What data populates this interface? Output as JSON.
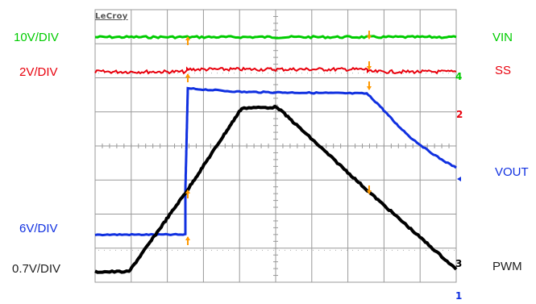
{
  "scope": {
    "brand": "LeCroy"
  },
  "labels": {
    "left": {
      "vin_scale": "10V/DIV",
      "ss_scale": "2V/DIV",
      "vout_scale": "6V/DIV",
      "pwm_scale": "0.7V/DIV"
    },
    "right": {
      "vin": "VIN",
      "ss": "SS",
      "vout": "VOUT",
      "pwm": "PWM"
    }
  },
  "channel_markers": {
    "ch4": "4",
    "ch2": "2",
    "ch3": "3",
    "ch1": "1"
  },
  "colors": {
    "vin": "#00cc00",
    "ss": "#e8000c",
    "vout": "#1030e0",
    "pwm": "#000000",
    "cursor": "#ff9900",
    "grid": "#999999"
  }
}
